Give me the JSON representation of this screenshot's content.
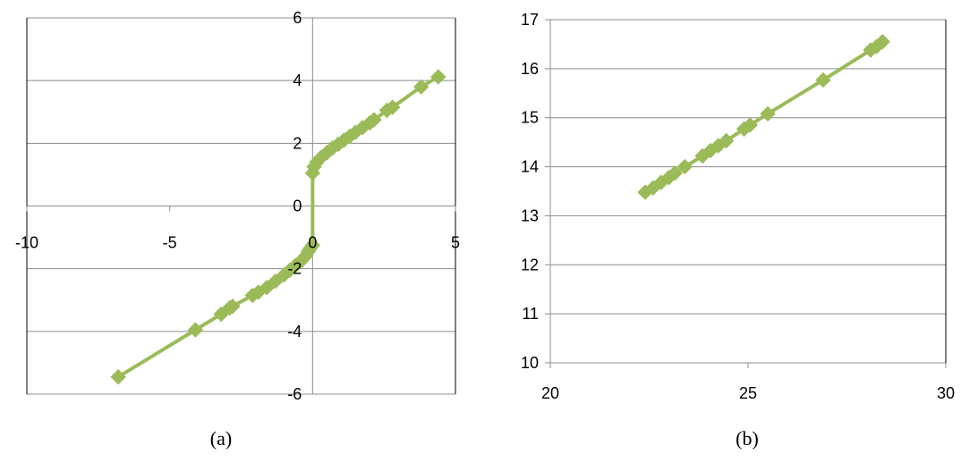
{
  "chart_data": [
    {
      "panel_label": "(a)",
      "type": "line",
      "title": "",
      "xlabel": "",
      "ylabel": "",
      "xlim": [
        -10,
        5
      ],
      "ylim": [
        -6,
        6
      ],
      "x_ticks": [
        -10,
        -5,
        0,
        5
      ],
      "y_ticks": [
        -6,
        -4,
        -2,
        0,
        2,
        4,
        6
      ],
      "x_tick_labels": [
        "-10",
        "-5",
        "0",
        "5"
      ],
      "y_tick_labels": [
        "-6",
        "-4",
        "-2",
        "0",
        "2",
        "4",
        "6"
      ],
      "grid": "horizontal major gridlines",
      "legend": "none",
      "marker": "diamond",
      "series": [
        {
          "color": "#9BBB59",
          "points": [
            [
              -6.8,
              -5.45
            ],
            [
              -4.1,
              -3.95
            ],
            [
              -3.2,
              -3.45
            ],
            [
              -2.9,
              -3.25
            ],
            [
              -2.8,
              -3.2
            ],
            [
              -2.1,
              -2.85
            ],
            [
              -1.9,
              -2.75
            ],
            [
              -1.6,
              -2.6
            ],
            [
              -1.3,
              -2.4
            ],
            [
              -1.0,
              -2.2
            ],
            [
              -0.8,
              -2.05
            ],
            [
              -0.6,
              -1.9
            ],
            [
              -0.4,
              -1.75
            ],
            [
              -0.25,
              -1.6
            ],
            [
              -0.15,
              -1.45
            ],
            [
              -0.08,
              -1.35
            ],
            [
              0.0,
              -1.25
            ],
            [
              0.0,
              1.05
            ],
            [
              0.05,
              1.25
            ],
            [
              0.15,
              1.4
            ],
            [
              0.3,
              1.55
            ],
            [
              0.5,
              1.7
            ],
            [
              0.7,
              1.85
            ],
            [
              0.9,
              1.97
            ],
            [
              1.1,
              2.1
            ],
            [
              1.3,
              2.22
            ],
            [
              1.5,
              2.35
            ],
            [
              1.75,
              2.5
            ],
            [
              2.0,
              2.65
            ],
            [
              2.15,
              2.75
            ],
            [
              2.6,
              3.05
            ],
            [
              2.8,
              3.15
            ],
            [
              3.8,
              3.8
            ],
            [
              4.4,
              4.12
            ]
          ]
        }
      ]
    },
    {
      "panel_label": "(b)",
      "type": "line",
      "title": "",
      "xlabel": "",
      "ylabel": "",
      "xlim": [
        20,
        30
      ],
      "ylim": [
        10,
        17
      ],
      "x_ticks": [
        20,
        25,
        30
      ],
      "y_ticks": [
        10,
        11,
        12,
        13,
        14,
        15,
        16,
        17
      ],
      "x_tick_labels": [
        "20",
        "25",
        "30"
      ],
      "y_tick_labels": [
        "10",
        "11",
        "12",
        "13",
        "14",
        "15",
        "16",
        "17"
      ],
      "grid": "horizontal major gridlines",
      "legend": "none",
      "marker": "diamond",
      "series": [
        {
          "color": "#9BBB59",
          "points": [
            [
              22.4,
              13.48
            ],
            [
              22.6,
              13.57
            ],
            [
              22.8,
              13.68
            ],
            [
              23.0,
              13.78
            ],
            [
              23.15,
              13.87
            ],
            [
              23.4,
              14.0
            ],
            [
              23.85,
              14.22
            ],
            [
              24.05,
              14.33
            ],
            [
              24.25,
              14.43
            ],
            [
              24.45,
              14.53
            ],
            [
              24.9,
              14.77
            ],
            [
              25.05,
              14.85
            ],
            [
              25.5,
              15.08
            ],
            [
              26.9,
              15.77
            ],
            [
              28.1,
              16.38
            ],
            [
              28.25,
              16.45
            ],
            [
              28.4,
              16.55
            ]
          ]
        }
      ]
    }
  ]
}
